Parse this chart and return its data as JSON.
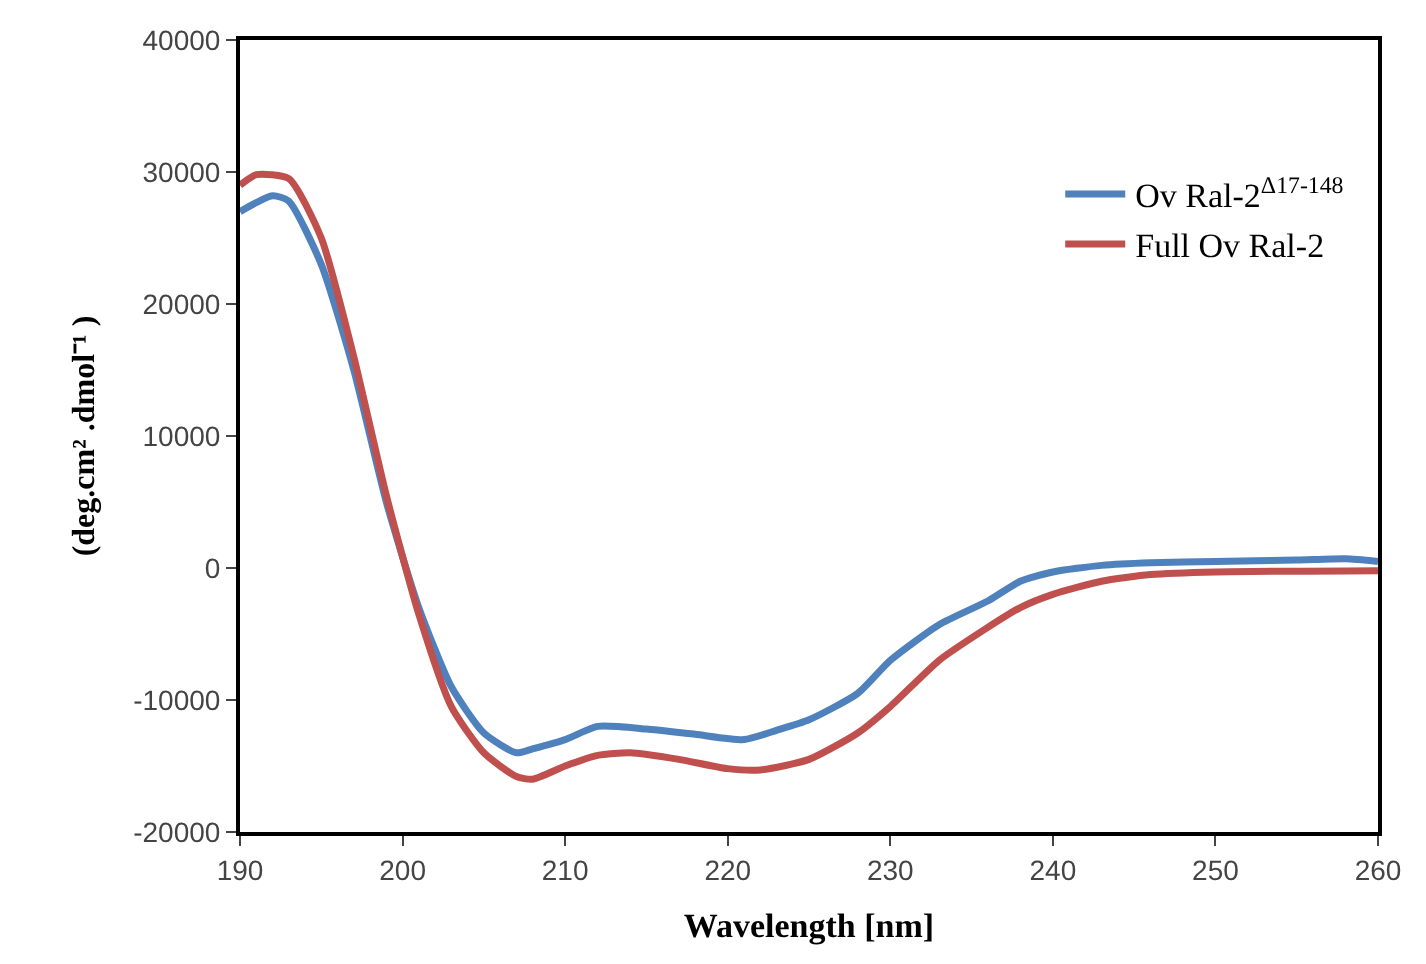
{
  "chart_data": {
    "type": "line",
    "xlabel": "Wavelength [nm]",
    "ylabel": "(deg.cm² .dmol⁻¹ )",
    "xlim": [
      190,
      260
    ],
    "xticks": [
      190,
      200,
      210,
      220,
      230,
      240,
      250,
      260
    ],
    "ylim": [
      -20000,
      40000
    ],
    "yticks": [
      -20000,
      -10000,
      0,
      10000,
      20000,
      30000,
      40000
    ],
    "legend": "top right",
    "marker": "none",
    "line_style": "solid",
    "series": [
      {
        "name": "Ov Ral-2$^{Δ17-148}$",
        "color": "#4f81bd",
        "x": [
          190,
          192,
          193,
          195,
          197,
          199,
          201,
          203,
          205,
          207,
          208,
          210,
          212,
          215,
          218,
          221,
          223,
          225,
          228,
          230,
          233,
          236,
          238,
          240,
          243,
          246,
          250,
          255,
          258,
          260
        ],
        "values": [
          27000,
          28200,
          27800,
          23000,
          15000,
          5000,
          -3000,
          -9000,
          -12500,
          -14000,
          -13700,
          -13000,
          -12000,
          -12200,
          -12600,
          -13000,
          -12300,
          -11500,
          -9500,
          -7000,
          -4300,
          -2500,
          -1000,
          -300,
          200,
          400,
          500,
          600,
          700,
          500
        ]
      },
      {
        "name": "Full Ov Ral-2",
        "color": "#c0504d",
        "x": [
          190,
          191,
          193,
          195,
          197,
          199,
          201,
          203,
          205,
          207,
          208,
          210,
          212,
          214,
          217,
          220,
          222,
          225,
          228,
          230,
          233,
          236,
          238,
          240,
          243,
          246,
          250,
          260
        ],
        "values": [
          29000,
          29800,
          29500,
          25000,
          16000,
          5500,
          -3500,
          -10500,
          -14000,
          -15800,
          -16000,
          -15000,
          -14200,
          -14000,
          -14500,
          -15200,
          -15300,
          -14500,
          -12500,
          -10500,
          -7000,
          -4500,
          -3000,
          -2000,
          -1000,
          -500,
          -300,
          -200
        ]
      }
    ]
  }
}
